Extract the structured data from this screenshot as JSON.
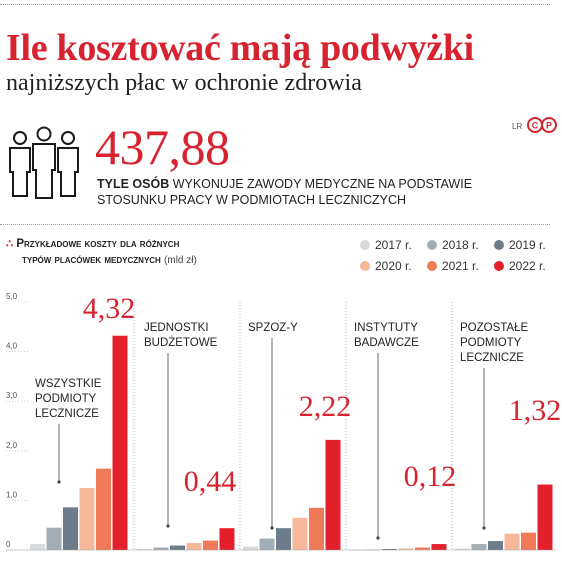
{
  "header": {
    "title": "Ile kosztować mają podwyżki",
    "subtitle": "najniższych płac w ochronie zdrowia"
  },
  "stat": {
    "value": "437,88",
    "description_bold": "TYLE OSÓB",
    "description_rest": " WYKONUJE ZAWODY MEDYCZNE NA PODSTAWIE",
    "description_line2": "STOSUNKU PRACY W PODMIOTACH LECZNICZYCH"
  },
  "credit": {
    "author": "LR",
    "logo": "CP"
  },
  "chart_block": {
    "title_line1": "Przykładowe koszty dla różnych",
    "title_line2": "typów placówek medycznych",
    "unit": "(mld zł)"
  },
  "colors": {
    "y2017": "#d8dbde",
    "y2018": "#a3adb6",
    "y2019": "#6c7c8a",
    "y2020": "#f6b79a",
    "y2021": "#ef7a58",
    "y2022": "#e3202b",
    "accent": "#d7232f"
  },
  "chart_data": {
    "type": "bar",
    "categories": [
      "WSZYSTKIE PODMIOTY LECZNICZE",
      "JEDNOSTKI BUDŻETOWE",
      "SPZOZ-Y",
      "INSTYTUTY BADAWCZE",
      "POZOSTAŁE PODMIOTY LECZNICZE"
    ],
    "category_lines": [
      [
        "WSZYSTKIE",
        "PODMIOTY",
        "LECZNICZE"
      ],
      [
        "JEDNOSTKI",
        "BUDŻETOWE"
      ],
      [
        "SPZOZ-Y"
      ],
      [
        "INSTYTUTY",
        "BADAWCZE"
      ],
      [
        "POZOSTAŁE",
        "PODMIOTY",
        "LECZNICZE"
      ]
    ],
    "series": [
      {
        "name": "2017 r.",
        "values": [
          0.12,
          0.02,
          0.07,
          0.01,
          0.03
        ]
      },
      {
        "name": "2018 r.",
        "values": [
          0.45,
          0.05,
          0.23,
          0.01,
          0.12
        ]
      },
      {
        "name": "2019 r.",
        "values": [
          0.86,
          0.09,
          0.44,
          0.02,
          0.18
        ]
      },
      {
        "name": "2020 r.",
        "values": [
          1.25,
          0.14,
          0.65,
          0.03,
          0.33
        ]
      },
      {
        "name": "2021 r.",
        "values": [
          1.64,
          0.19,
          0.85,
          0.05,
          0.35
        ]
      },
      {
        "name": "2022 r.",
        "values": [
          4.32,
          0.44,
          2.22,
          0.12,
          1.32
        ]
      }
    ],
    "value_labels": [
      "4,32",
      "0,44",
      "2,22",
      "0,12",
      "1,32"
    ],
    "yticks": [
      "0",
      "1,0",
      "2,0",
      "3,0",
      "4,0",
      "5,0"
    ],
    "ylim": [
      0,
      5
    ]
  }
}
